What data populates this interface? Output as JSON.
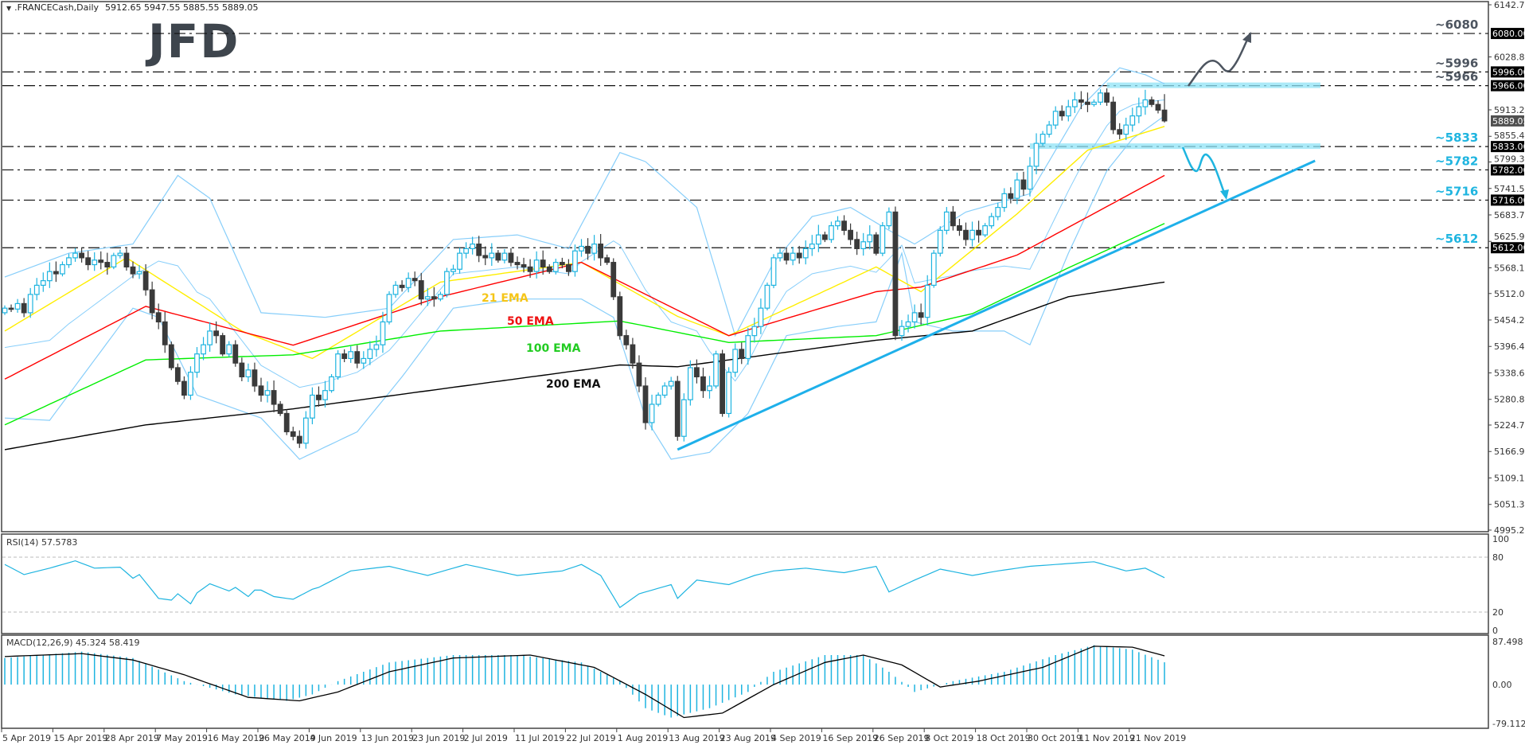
{
  "header": {
    "symbol_label": ".FRANCECash,Daily",
    "ohlc": "5912.65 5947.55 5885.55 5889.05"
  },
  "logo": "JFD",
  "chart_data": {
    "type": "candlestick",
    "symbol": ".FRANCECash",
    "timeframe": "Daily",
    "last_bar": {
      "open": 5912.65,
      "high": 5947.55,
      "low": 5885.55,
      "close": 5889.05
    },
    "price_axis": {
      "min": 4995.2,
      "max": 6142.7,
      "ticks": [
        "6142.70",
        "6028.80",
        "5913.20",
        "5855.40",
        "5799.30",
        "5741.50",
        "5683.70",
        "5625.90",
        "5568.10",
        "5512.00",
        "5454.20",
        "5396.40",
        "5338.60",
        "5280.80",
        "5224.70",
        "5166.90",
        "5109.10",
        "5051.30",
        "4995.20"
      ]
    },
    "current_price": {
      "value": 5889.05,
      "label": "5889.05"
    },
    "date_labels": [
      "5 Apr 2019",
      "15 Apr 2019",
      "28 Apr 2019",
      "7 May 2019",
      "16 May 2019",
      "26 May 2019",
      "4 Jun 2019",
      "13 Jun 2019",
      "23 Jun 2019",
      "2 Jul 2019",
      "11 Jul 2019",
      "22 Jul 2019",
      "1 Aug 2019",
      "13 Aug 2019",
      "23 Aug 2019",
      "4 Sep 2019",
      "16 Sep 2019",
      "26 Sep 2019",
      "8 Oct 2019",
      "18 Oct 2019",
      "30 Oct 2019",
      "11 Nov 2019",
      "21 Nov 2019"
    ],
    "bars_per_date_label": 8,
    "closes": [
      5480,
      5478,
      5490,
      5470,
      5510,
      5530,
      5540,
      5560,
      5555,
      5575,
      5590,
      5600,
      5590,
      5575,
      5585,
      5580,
      5570,
      5595,
      5600,
      5570,
      5555,
      5560,
      5520,
      5470,
      5450,
      5400,
      5350,
      5320,
      5290,
      5340,
      5380,
      5400,
      5430,
      5420,
      5380,
      5400,
      5360,
      5330,
      5345,
      5310,
      5290,
      5300,
      5270,
      5250,
      5210,
      5200,
      5185,
      5240,
      5290,
      5280,
      5300,
      5330,
      5380,
      5370,
      5385,
      5360,
      5370,
      5390,
      5400,
      5450,
      5510,
      5530,
      5525,
      5545,
      5540,
      5500,
      5505,
      5500,
      5510,
      5560,
      5565,
      5600,
      5610,
      5620,
      5595,
      5590,
      5600,
      5585,
      5600,
      5580,
      5575,
      5570,
      5560,
      5585,
      5570,
      5560,
      5580,
      5575,
      5560,
      5605,
      5615,
      5600,
      5620,
      5590,
      5580,
      5505,
      5420,
      5400,
      5360,
      5310,
      5230,
      5270,
      5290,
      5310,
      5320,
      5200,
      5280,
      5350,
      5330,
      5300,
      5310,
      5380,
      5250,
      5340,
      5390,
      5370,
      5420,
      5440,
      5480,
      5530,
      5590,
      5600,
      5585,
      5600,
      5590,
      5610,
      5620,
      5640,
      5630,
      5660,
      5670,
      5650,
      5630,
      5610,
      5625,
      5640,
      5600,
      5660,
      5690,
      5420,
      5440,
      5450,
      5470,
      5460,
      5530,
      5600,
      5650,
      5690,
      5660,
      5650,
      5630,
      5650,
      5640,
      5660,
      5680,
      5700,
      5730,
      5720,
      5760,
      5740,
      5790,
      5840,
      5860,
      5880,
      5910,
      5900,
      5920,
      5935,
      5930,
      5925,
      5930,
      5950,
      5930,
      5870,
      5860,
      5880,
      5900,
      5920,
      5935,
      5925,
      5912.65,
      5889.05
    ],
    "moving_averages": [
      {
        "name": "21 EMA",
        "color": "#ffee00",
        "label_color": "#f5c518",
        "points": [
          [
            0,
            5430
          ],
          [
            19,
            5590
          ],
          [
            37,
            5430
          ],
          [
            48,
            5370
          ],
          [
            68,
            5537
          ],
          [
            90,
            5580
          ],
          [
            105,
            5462
          ],
          [
            113,
            5420
          ],
          [
            136,
            5570
          ],
          [
            143,
            5516
          ],
          [
            158,
            5686
          ],
          [
            169,
            5825
          ],
          [
            181,
            5877
          ]
        ]
      },
      {
        "name": "50 EMA",
        "color": "#ff0000",
        "label_color": "#ee1111",
        "points": [
          [
            0,
            5325
          ],
          [
            22,
            5484
          ],
          [
            45,
            5399
          ],
          [
            68,
            5505
          ],
          [
            90,
            5580
          ],
          [
            113,
            5420
          ],
          [
            136,
            5516
          ],
          [
            143,
            5526
          ],
          [
            158,
            5596
          ],
          [
            181,
            5770
          ]
        ]
      },
      {
        "name": "100 EMA",
        "color": "#00ee00",
        "label_color": "#22cc22",
        "points": [
          [
            0,
            5225
          ],
          [
            22,
            5367
          ],
          [
            45,
            5378
          ],
          [
            68,
            5430
          ],
          [
            96,
            5452
          ],
          [
            113,
            5405
          ],
          [
            136,
            5420
          ],
          [
            151,
            5468
          ],
          [
            166,
            5568
          ],
          [
            181,
            5665
          ]
        ]
      },
      {
        "name": "200 EMA",
        "color": "#000000",
        "label_color": "#111111",
        "points": [
          [
            0,
            5171
          ],
          [
            22,
            5225
          ],
          [
            45,
            5260
          ],
          [
            96,
            5356
          ],
          [
            105,
            5352
          ],
          [
            136,
            5410
          ],
          [
            151,
            5430
          ],
          [
            166,
            5505
          ],
          [
            181,
            5537
          ]
        ]
      }
    ],
    "bollinger": {
      "color": "#87cefa",
      "upper": [
        [
          0,
          5548
        ],
        [
          10,
          5600
        ],
        [
          20,
          5620
        ],
        [
          27,
          5770
        ],
        [
          32,
          5720
        ],
        [
          40,
          5470
        ],
        [
          50,
          5460
        ],
        [
          60,
          5480
        ],
        [
          70,
          5630
        ],
        [
          80,
          5640
        ],
        [
          88,
          5610
        ],
        [
          96,
          5820
        ],
        [
          100,
          5800
        ],
        [
          108,
          5700
        ],
        [
          114,
          5420
        ],
        [
          120,
          5580
        ],
        [
          126,
          5680
        ],
        [
          132,
          5700
        ],
        [
          138,
          5650
        ],
        [
          142,
          5620
        ],
        [
          150,
          5690
        ],
        [
          160,
          5730
        ],
        [
          168,
          5920
        ],
        [
          174,
          6005
        ],
        [
          178,
          5990
        ],
        [
          181,
          5970
        ]
      ],
      "lower": [
        [
          0,
          5240
        ],
        [
          7,
          5235
        ],
        [
          20,
          5480
        ],
        [
          24,
          5460
        ],
        [
          30,
          5290
        ],
        [
          40,
          5240
        ],
        [
          46,
          5150
        ],
        [
          55,
          5210
        ],
        [
          62,
          5330
        ],
        [
          70,
          5480
        ],
        [
          80,
          5500
        ],
        [
          90,
          5500
        ],
        [
          95,
          5460
        ],
        [
          100,
          5240
        ],
        [
          104,
          5150
        ],
        [
          110,
          5165
        ],
        [
          116,
          5250
        ],
        [
          122,
          5420
        ],
        [
          130,
          5440
        ],
        [
          136,
          5450
        ],
        [
          140,
          5600
        ],
        [
          142,
          5450
        ],
        [
          148,
          5430
        ],
        [
          156,
          5430
        ],
        [
          160,
          5400
        ],
        [
          166,
          5600
        ],
        [
          172,
          5780
        ],
        [
          176,
          5850
        ],
        [
          181,
          5900
        ]
      ]
    },
    "levels": [
      {
        "value": 6080,
        "label": "~6080",
        "axis_label": "6080.00",
        "color": "#4d5560"
      },
      {
        "value": 5996,
        "label": "~5996",
        "axis_label": "5996.00",
        "color": "#4d5560"
      },
      {
        "value": 5966,
        "label": "~5966",
        "axis_label": "5966.00",
        "color": "#4d5560"
      },
      {
        "value": 5833,
        "label": "~5833",
        "axis_label": "5833.00",
        "color": "#1fb5e0"
      },
      {
        "value": 5782,
        "label": "~5782",
        "axis_label": "5782.00",
        "color": "#1fb5e0"
      },
      {
        "value": 5716,
        "label": "~5716",
        "axis_label": "5716.00",
        "color": "#1fb5e0"
      },
      {
        "value": 5612,
        "label": "~5612",
        "axis_label": "5612.00",
        "color": "#1fb5e0"
      }
    ],
    "zones": [
      {
        "value": 5966,
        "from_bar": 172
      },
      {
        "value": 5833,
        "from_bar": 160
      }
    ],
    "trendline": {
      "color": "#1eb0ea",
      "from": [
        105,
        5171
      ],
      "to": [
        204.5,
        5802
      ]
    },
    "rsi": {
      "label": "RSI(14) 57.5783",
      "levels": [
        80,
        20
      ],
      "axis_ticks": [
        "100",
        "80",
        "20",
        "0"
      ],
      "color": "#1eb4e0",
      "points": [
        [
          0,
          72
        ],
        [
          3,
          61
        ],
        [
          7,
          68
        ],
        [
          11,
          76
        ],
        [
          14,
          68
        ],
        [
          18,
          69
        ],
        [
          20,
          57
        ],
        [
          21,
          61
        ],
        [
          24,
          35
        ],
        [
          26,
          33
        ],
        [
          27,
          40
        ],
        [
          29,
          29
        ],
        [
          30,
          41
        ],
        [
          32,
          51
        ],
        [
          35,
          43
        ],
        [
          36,
          47
        ],
        [
          38,
          37
        ],
        [
          39,
          44
        ],
        [
          40,
          44
        ],
        [
          42,
          37
        ],
        [
          45,
          34
        ],
        [
          48,
          45
        ],
        [
          49,
          47
        ],
        [
          54,
          65
        ],
        [
          60,
          70
        ],
        [
          66,
          60
        ],
        [
          72,
          72
        ],
        [
          80,
          60
        ],
        [
          87,
          65
        ],
        [
          90,
          72
        ],
        [
          93,
          60
        ],
        [
          96,
          25
        ],
        [
          99,
          40
        ],
        [
          104,
          50
        ],
        [
          105,
          35
        ],
        [
          108,
          55
        ],
        [
          113,
          50
        ],
        [
          117,
          60
        ],
        [
          120,
          65
        ],
        [
          125,
          68
        ],
        [
          131,
          63
        ],
        [
          136,
          70
        ],
        [
          138,
          42
        ],
        [
          142,
          55
        ],
        [
          146,
          67
        ],
        [
          151,
          60
        ],
        [
          155,
          65
        ],
        [
          160,
          70
        ],
        [
          166,
          73
        ],
        [
          170,
          75
        ],
        [
          175,
          65
        ],
        [
          178,
          68
        ],
        [
          181,
          57.58
        ]
      ]
    },
    "macd": {
      "label": "MACD(12,26,9) 45.324 58.419",
      "axis_ticks": [
        "87.498",
        "0.00",
        "-79.112"
      ],
      "hist_color": "#1eb4e0",
      "signal_color": "#000000",
      "main": [
        [
          0,
          54
        ],
        [
          12,
          67
        ],
        [
          20,
          54
        ],
        [
          28,
          7
        ],
        [
          36,
          -20
        ],
        [
          44,
          -33
        ],
        [
          48,
          -20
        ],
        [
          52,
          7
        ],
        [
          60,
          45
        ],
        [
          70,
          60
        ],
        [
          80,
          60
        ],
        [
          90,
          45
        ],
        [
          96,
          7
        ],
        [
          100,
          -48
        ],
        [
          104,
          -67
        ],
        [
          110,
          -48
        ],
        [
          116,
          -15
        ],
        [
          120,
          26
        ],
        [
          128,
          60
        ],
        [
          134,
          60
        ],
        [
          138,
          26
        ],
        [
          142,
          -15
        ],
        [
          148,
          7
        ],
        [
          156,
          26
        ],
        [
          164,
          60
        ],
        [
          170,
          80
        ],
        [
          176,
          71
        ],
        [
          181,
          45.324
        ]
      ],
      "signal": [
        [
          0,
          57
        ],
        [
          12,
          63
        ],
        [
          20,
          50
        ],
        [
          28,
          20
        ],
        [
          38,
          -26
        ],
        [
          46,
          -33
        ],
        [
          52,
          -15
        ],
        [
          60,
          26
        ],
        [
          70,
          54
        ],
        [
          82,
          60
        ],
        [
          92,
          35
        ],
        [
          100,
          -20
        ],
        [
          106,
          -67
        ],
        [
          112,
          -58
        ],
        [
          120,
          0
        ],
        [
          128,
          45
        ],
        [
          134,
          60
        ],
        [
          140,
          40
        ],
        [
          146,
          -5
        ],
        [
          152,
          7
        ],
        [
          162,
          35
        ],
        [
          170,
          78
        ],
        [
          176,
          76
        ],
        [
          181,
          58.419
        ]
      ]
    }
  }
}
